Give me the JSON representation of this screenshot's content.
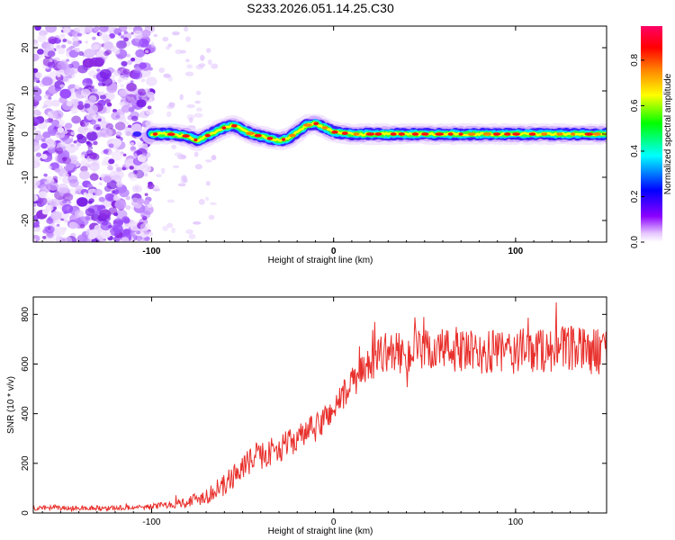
{
  "title": "S233.2026.051.14.25.C30",
  "colors": {
    "axis": "#000000",
    "snr_line": "#e8302c",
    "noise": "#8a2be2"
  },
  "chart_data": [
    {
      "type": "heatmap",
      "name": "spectrogram",
      "xlabel": "Height of straight line (km)",
      "ylabel": "Frequency (Hz)",
      "xlim": [
        -165,
        150
      ],
      "ylim": [
        -25,
        25
      ],
      "x_ticks": [
        -100,
        0,
        100
      ],
      "y_ticks": [
        20,
        10,
        0,
        -10,
        -20
      ],
      "colorbar": {
        "label": "Normalized spectral amplitude",
        "range": [
          0.0,
          0.95
        ],
        "ticks": [
          "0.0",
          "0.2",
          "0.4",
          "0.6",
          "0.8"
        ],
        "ticks_values": [
          0.0,
          0.2,
          0.4,
          0.6,
          0.8
        ],
        "colors": [
          "#ffffff",
          "#8b00ff",
          "#0000ff",
          "#00ffff",
          "#00ff00",
          "#ffff00",
          "#ff8000",
          "#ff0000",
          "#ff0066"
        ]
      },
      "noise_region_x": [
        -165,
        -100
      ],
      "ridge": {
        "x": [
          -100,
          -90,
          -80,
          -75,
          -70,
          -65,
          -60,
          -55,
          -50,
          -45,
          -40,
          -35,
          -30,
          -25,
          -20,
          -15,
          -10,
          -5,
          0,
          10,
          20,
          30,
          40,
          50,
          60,
          70,
          80,
          90,
          100,
          110,
          120,
          130,
          140,
          150
        ],
        "freq": [
          0,
          0,
          -0.5,
          -1.5,
          -0.5,
          0.5,
          1.5,
          2.0,
          1.0,
          0.0,
          -0.5,
          -1.0,
          -1.5,
          -1.0,
          0.5,
          2.0,
          2.5,
          1.5,
          0.5,
          0.0,
          0.0,
          0.0,
          0.0,
          0.0,
          0.0,
          0.0,
          0.0,
          0.0,
          0.0,
          0.0,
          0.0,
          0.0,
          0.0,
          0.0
        ]
      }
    },
    {
      "type": "line",
      "name": "snr",
      "xlabel": "Height of straight line (km)",
      "ylabel": "SNR (10 * v/v)",
      "xlim": [
        -165,
        150
      ],
      "ylim": [
        0,
        870
      ],
      "x_ticks": [
        -100,
        0,
        100
      ],
      "y_ticks": [
        0,
        200,
        400,
        600,
        800
      ],
      "trend": {
        "x": [
          -165,
          -120,
          -100,
          -90,
          -80,
          -70,
          -60,
          -50,
          -40,
          -30,
          -20,
          -10,
          0,
          10,
          20,
          25,
          30,
          40,
          50,
          60,
          80,
          100,
          120,
          150
        ],
        "y": [
          20,
          20,
          25,
          35,
          45,
          70,
          110,
          190,
          230,
          260,
          300,
          340,
          420,
          520,
          600,
          640,
          650,
          640,
          650,
          660,
          640,
          650,
          660,
          650
        ],
        "noise_amp": [
          10,
          10,
          12,
          15,
          25,
          35,
          45,
          55,
          55,
          55,
          55,
          60,
          60,
          65,
          70,
          80,
          80,
          85,
          90,
          90,
          90,
          95,
          95,
          95
        ]
      }
    }
  ]
}
